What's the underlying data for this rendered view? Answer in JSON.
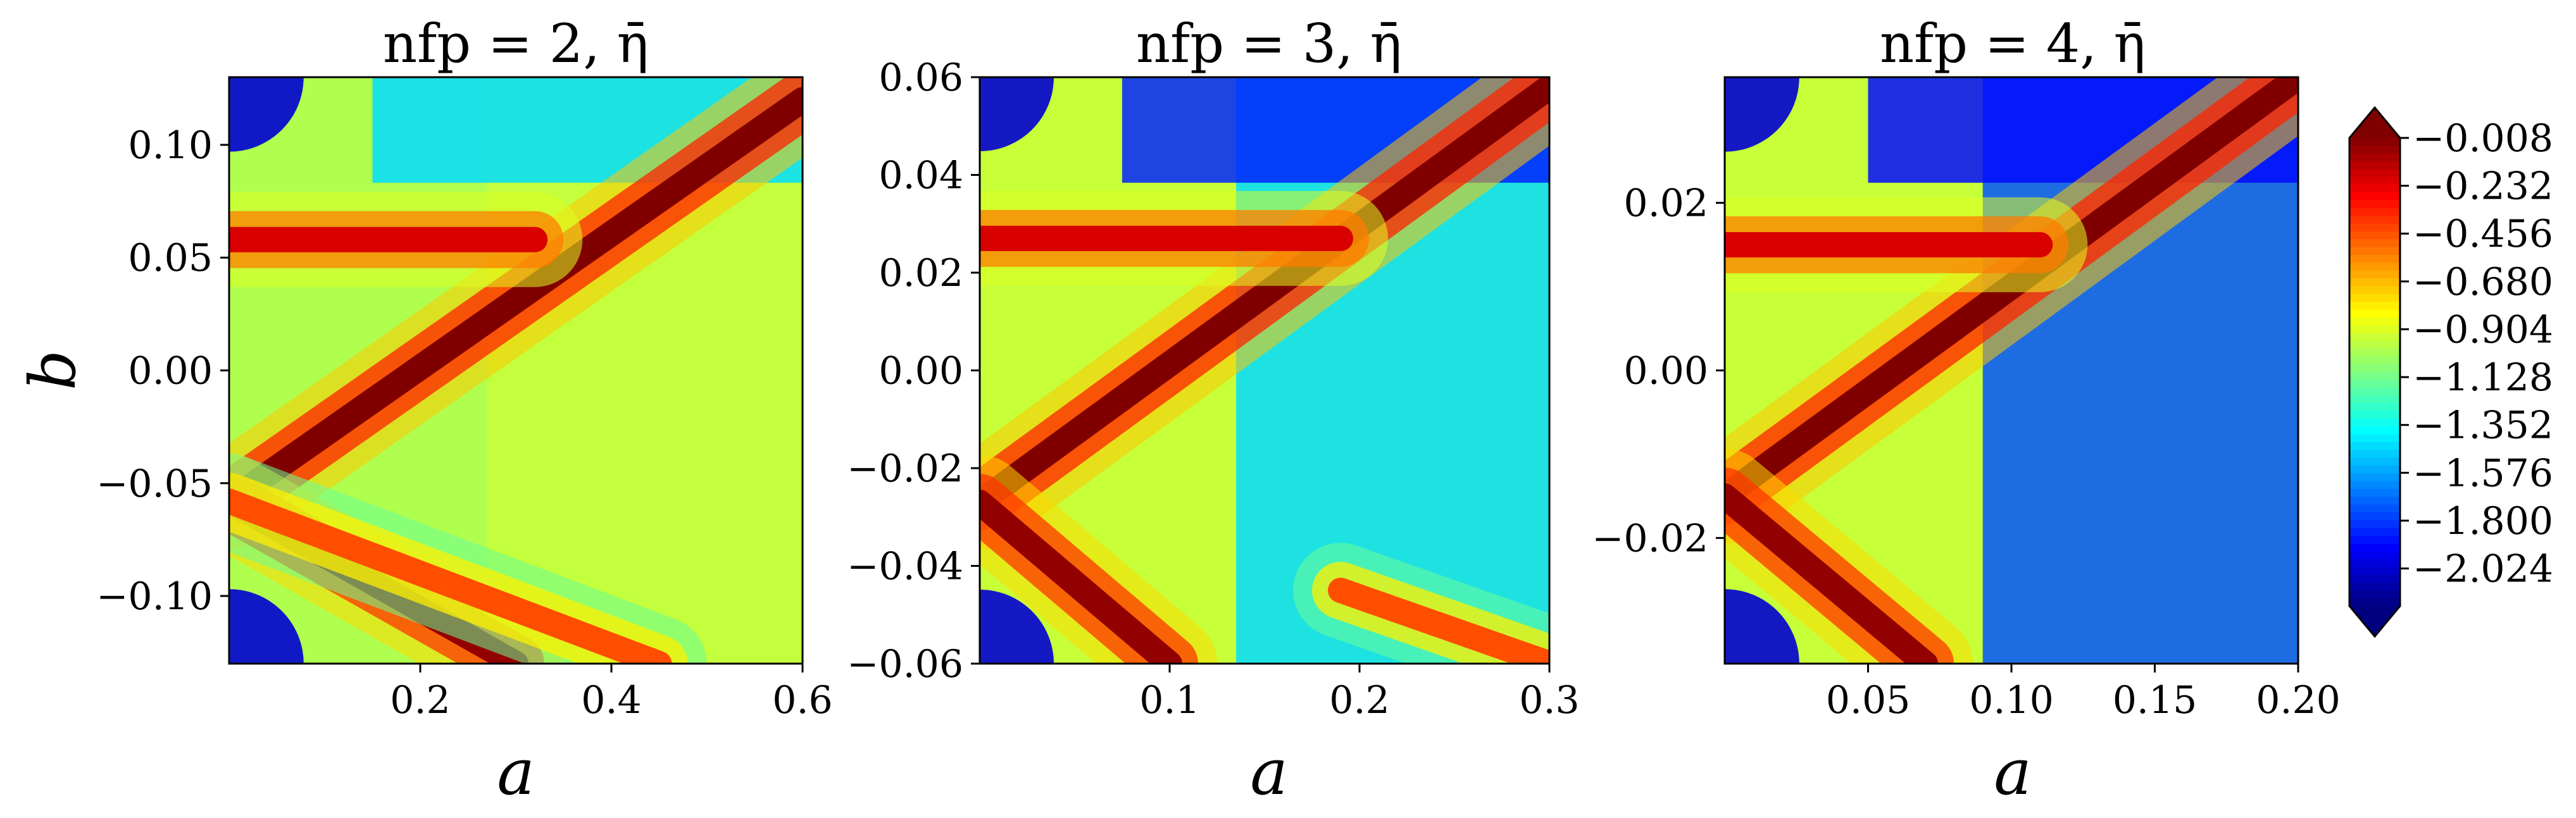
{
  "figure": {
    "colorbar": {
      "colormap": "jet",
      "extend": "both",
      "range": [
        -2.2,
        -0.008
      ],
      "tick_labels": [
        "−0.008",
        "−0.232",
        "−0.456",
        "−0.680",
        "−0.904",
        "−1.128",
        "−1.352",
        "−1.576",
        "−1.800",
        "−2.024"
      ],
      "tick_values": [
        -0.008,
        -0.232,
        -0.456,
        -0.68,
        -0.904,
        -1.128,
        -1.352,
        -1.576,
        -1.8,
        -2.024
      ]
    }
  },
  "chart_data": [
    {
      "type": "heatmap",
      "title": "nfp = 2, η̄",
      "xlabel": "a",
      "ylabel": "b",
      "xlim": [
        0.0,
        0.6
      ],
      "ylim": [
        -0.13,
        0.13
      ],
      "x_tick_values": [
        0.2,
        0.4,
        0.6
      ],
      "x_tick_labels": [
        "0.2",
        "0.4",
        "0.6"
      ],
      "y_tick_values": [
        0.1,
        0.05,
        0.0,
        -0.05,
        -0.1
      ],
      "y_tick_labels": [
        "0.10",
        "0.05",
        "0.00",
        "−0.05",
        "−0.10"
      ],
      "ridges": [
        {
          "from": [
            0.0,
            -0.058
          ],
          "to": [
            0.6,
            0.12
          ],
          "value": -0.01
        },
        {
          "from": [
            0.0,
            -0.058
          ],
          "to": [
            0.3,
            -0.13
          ],
          "value": -0.05
        },
        {
          "from": [
            0.0,
            0.058
          ],
          "to": [
            0.32,
            0.058
          ],
          "value": -0.2
        },
        {
          "from": [
            0.0,
            -0.058
          ],
          "to": [
            0.45,
            -0.13
          ],
          "value": -0.45
        }
      ],
      "background": [
        {
          "region": "left-edge",
          "value": -1.0
        },
        {
          "region": "right-side",
          "value": -0.95
        },
        {
          "region": "top-band",
          "value": -1.45
        },
        {
          "region": "corners",
          "value": -2.02
        }
      ]
    },
    {
      "type": "heatmap",
      "title": "nfp = 3, η̄",
      "xlabel": "a",
      "ylabel": "",
      "xlim": [
        0.0,
        0.3
      ],
      "ylim": [
        -0.06,
        0.06
      ],
      "x_tick_values": [
        0.1,
        0.2,
        0.3
      ],
      "x_tick_labels": [
        "0.1",
        "0.2",
        "0.3"
      ],
      "y_tick_values": [
        0.06,
        0.04,
        0.02,
        0.0,
        -0.02,
        -0.04,
        -0.06
      ],
      "y_tick_labels": [
        "0.06",
        "0.04",
        "0.02",
        "0.00",
        "−0.02",
        "−0.04",
        "−0.06"
      ],
      "ridges": [
        {
          "from": [
            0.0,
            -0.027
          ],
          "to": [
            0.3,
            0.058
          ],
          "value": -0.01
        },
        {
          "from": [
            0.0,
            -0.027
          ],
          "to": [
            0.1,
            -0.06
          ],
          "value": -0.05
        },
        {
          "from": [
            0.0,
            0.027
          ],
          "to": [
            0.19,
            0.027
          ],
          "value": -0.2
        },
        {
          "from": [
            0.19,
            -0.045
          ],
          "to": [
            0.3,
            -0.06
          ],
          "value": -0.45
        }
      ],
      "background": [
        {
          "region": "left-edge",
          "value": -0.95
        },
        {
          "region": "right-side",
          "value": -1.45
        },
        {
          "region": "top-band",
          "value": -1.85
        },
        {
          "region": "corners",
          "value": -2.02
        }
      ]
    },
    {
      "type": "heatmap",
      "title": "nfp = 4, η̄",
      "xlabel": "a",
      "ylabel": "",
      "xlim": [
        0.0,
        0.2
      ],
      "ylim": [
        -0.035,
        0.035
      ],
      "x_tick_values": [
        0.05,
        0.1,
        0.15,
        0.2
      ],
      "x_tick_labels": [
        "0.05",
        "0.10",
        "0.15",
        "0.20"
      ],
      "y_tick_values": [
        0.02,
        0.0,
        -0.02
      ],
      "y_tick_labels": [
        "0.02",
        "0.00",
        "−0.02"
      ],
      "ridges": [
        {
          "from": [
            0.0,
            -0.015
          ],
          "to": [
            0.2,
            0.035
          ],
          "value": -0.01
        },
        {
          "from": [
            0.0,
            -0.015
          ],
          "to": [
            0.07,
            -0.035
          ],
          "value": -0.05
        },
        {
          "from": [
            0.0,
            0.015
          ],
          "to": [
            0.11,
            0.015
          ],
          "value": -0.2
        }
      ],
      "background": [
        {
          "region": "left-edge",
          "value": -0.95
        },
        {
          "region": "right-side",
          "value": -1.75
        },
        {
          "region": "top-band",
          "value": -1.9
        },
        {
          "region": "corners",
          "value": -2.02
        }
      ]
    }
  ]
}
